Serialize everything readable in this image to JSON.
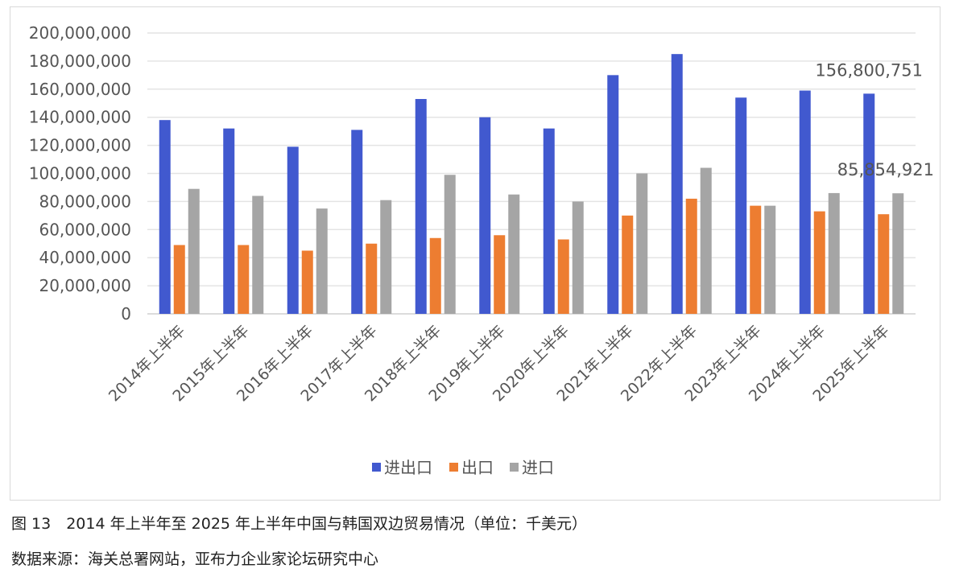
{
  "chart_data": {
    "type": "bar",
    "title": "",
    "xlabel": "",
    "ylabel": "",
    "ylim": [
      0,
      200000000
    ],
    "ytick_step": 20000000,
    "yticks": [
      "0",
      "20,000,000",
      "40,000,000",
      "60,000,000",
      "80,000,000",
      "100,000,000",
      "120,000,000",
      "140,000,000",
      "160,000,000",
      "180,000,000",
      "200,000,000"
    ],
    "grid": true,
    "legend_position": "bottom",
    "categories": [
      "2014年上半年",
      "2015年上半年",
      "2016年上半年",
      "2017年上半年",
      "2018年上半年",
      "2019年上半年",
      "2020年上半年",
      "2021年上半年",
      "2022年上半年",
      "2023年上半年",
      "2024年上半年",
      "2025年上半年"
    ],
    "series": [
      {
        "name": "进出口",
        "color": "#4159cf",
        "values": [
          138000000,
          132000000,
          119000000,
          131000000,
          153000000,
          140000000,
          132000000,
          170000000,
          185000000,
          154000000,
          159000000,
          156800751
        ]
      },
      {
        "name": "出口",
        "color": "#ed7d31",
        "values": [
          49000000,
          49000000,
          45000000,
          50000000,
          54000000,
          56000000,
          53000000,
          70000000,
          82000000,
          77000000,
          73000000,
          70945830
        ]
      },
      {
        "name": "进口",
        "color": "#a5a5a5",
        "values": [
          89000000,
          84000000,
          75000000,
          81000000,
          99000000,
          85000000,
          80000000,
          100000000,
          104000000,
          77000000,
          86000000,
          85854921
        ]
      }
    ],
    "annotations": [
      "156,800,751",
      "85,854,921"
    ]
  },
  "caption": "图 13　2014 年上半年至 2025 年上半年中国与韩国双边贸易情况（单位：千美元）",
  "source": "数据来源：海关总署网站，亚布力企业家论坛研究中心"
}
